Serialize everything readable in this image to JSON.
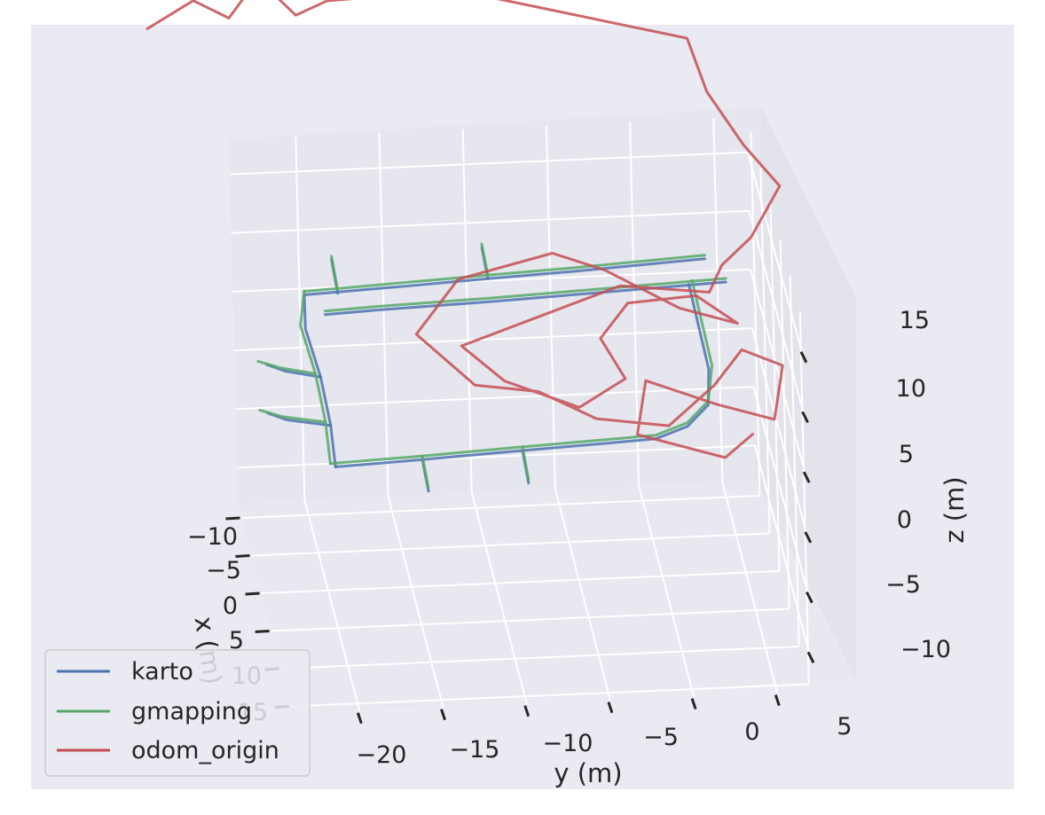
{
  "chart_data": {
    "type": "line",
    "projection": "3d",
    "title": "",
    "xlabel": "x (m)",
    "ylabel": "y (m)",
    "zlabel": "z (m)",
    "x_ticks": [
      "−10",
      "−5",
      "0",
      "5",
      "10",
      "15"
    ],
    "y_ticks": [
      "−20",
      "−15",
      "−10",
      "−5",
      "0",
      "5"
    ],
    "z_ticks": [
      "−10",
      "−5",
      "0",
      "5",
      "10",
      "15"
    ],
    "xlim": [
      -12,
      16
    ],
    "ylim": [
      -24,
      7
    ],
    "zlim": [
      -13,
      18
    ],
    "grid": true,
    "legend_position": "lower-left",
    "series": [
      {
        "name": "karto",
        "color": "#4c72b0",
        "segments": [
          [
            [
              0,
              -21,
              12
            ],
            [
              0,
              -16,
              12.3
            ],
            [
              0,
              -10,
              12.7
            ],
            [
              0,
              -5,
              13
            ],
            [
              0,
              -1,
              13.3
            ],
            [
              0,
              3,
              13.6
            ]
          ],
          [
            [
              0,
              -21,
              12
            ],
            [
              3,
              -21.3,
              11
            ],
            [
              8,
              -21,
              10
            ],
            [
              13,
              -21,
              9
            ],
            [
              17,
              -21.2,
              8
            ]
          ],
          [
            [
              17,
              -21.2,
              8
            ],
            [
              17,
              -16,
              8.3
            ],
            [
              17,
              -10,
              8.7
            ],
            [
              17,
              -5,
              9
            ],
            [
              17,
              -2,
              9.2
            ],
            [
              16,
              0,
              9.5
            ],
            [
              14,
              1.5,
              10
            ],
            [
              10,
              2,
              10.5
            ],
            [
              5,
              2,
              11
            ],
            [
              0,
              2,
              11.5
            ]
          ],
          [
            [
              8,
              -21,
              10
            ],
            [
              7,
              -23,
              10
            ],
            [
              6,
              -24,
              10
            ]
          ],
          [
            [
              13,
              -21,
              9
            ],
            [
              12,
              -23.5,
              9
            ],
            [
              11,
              -24.5,
              9
            ]
          ],
          [
            [
              17,
              -16,
              8.3
            ],
            [
              20,
              -16,
              7.5
            ]
          ],
          [
            [
              17,
              -10,
              8.7
            ],
            [
              20,
              -10,
              7.8
            ]
          ],
          [
            [
              0,
              -19,
              12
            ],
            [
              -3,
              -19,
              13
            ]
          ],
          [
            [
              0,
              -10,
              12.7
            ],
            [
              -3,
              -10,
              13.5
            ]
          ],
          [
            [
              2,
              -20,
              11.5
            ],
            [
              2,
              -17,
              11.7
            ],
            [
              2,
              -10,
              12
            ],
            [
              2,
              -3,
              12.4
            ],
            [
              2,
              4,
              12.8
            ]
          ]
        ]
      },
      {
        "name": "gmapping",
        "color": "#55a868",
        "segments": [
          [
            [
              0,
              -21,
              12.3
            ],
            [
              0,
              -16,
              12.6
            ],
            [
              0,
              -10,
              13
            ],
            [
              0,
              -5,
              13.3
            ],
            [
              0,
              -1,
              13.6
            ],
            [
              0,
              3,
              13.9
            ]
          ],
          [
            [
              0,
              -21,
              12.3
            ],
            [
              3,
              -21.6,
              11.3
            ],
            [
              8,
              -21.3,
              10.3
            ],
            [
              13,
              -21.3,
              9.3
            ],
            [
              17,
              -21.5,
              8.3
            ]
          ],
          [
            [
              17,
              -21.5,
              8.3
            ],
            [
              17,
              -16,
              8.6
            ],
            [
              17,
              -10,
              9
            ],
            [
              17,
              -5,
              9.3
            ],
            [
              17,
              -2,
              9.5
            ],
            [
              16,
              0,
              9.8
            ],
            [
              14,
              1.5,
              10.3
            ],
            [
              10,
              2.2,
              10.8
            ],
            [
              5,
              2.2,
              11.3
            ],
            [
              0,
              2.2,
              11.8
            ]
          ],
          [
            [
              8,
              -21.3,
              10.3
            ],
            [
              7,
              -23.3,
              10.3
            ],
            [
              6,
              -24.5,
              10.3
            ]
          ],
          [
            [
              13,
              -21.3,
              9.3
            ],
            [
              12,
              -23.8,
              9.3
            ],
            [
              11,
              -25,
              9.3
            ]
          ],
          [
            [
              17,
              -16,
              8.6
            ],
            [
              20,
              -16,
              7.8
            ]
          ],
          [
            [
              17,
              -10,
              9
            ],
            [
              20,
              -10,
              8.1
            ]
          ],
          [
            [
              0,
              -19,
              12.3
            ],
            [
              -3,
              -19,
              13.3
            ]
          ],
          [
            [
              0,
              -10,
              13
            ],
            [
              -3,
              -10,
              13.8
            ]
          ],
          [
            [
              2,
              -20,
              11.8
            ],
            [
              2,
              -17,
              12
            ],
            [
              2,
              -10,
              12.3
            ],
            [
              2,
              -3,
              12.7
            ],
            [
              2,
              4,
              13.1
            ]
          ]
        ]
      },
      {
        "name": "odom_origin",
        "color": "#c44e52",
        "segments": [
          [
            [
              0,
              -30,
              35
            ],
            [
              -2,
              -27,
              36
            ],
            [
              -1,
              -25,
              35
            ],
            [
              -3,
              -23,
              37
            ],
            [
              -1,
              -21,
              35
            ],
            [
              -2,
              -19,
              35.5
            ],
            [
              -3,
              -17,
              35
            ],
            [
              -2,
              -15,
              36
            ],
            [
              -3,
              -12,
              35
            ],
            [
              -4,
              -9,
              34
            ],
            [
              -5,
              -5,
              32
            ],
            [
              -6,
              -1,
              30
            ],
            [
              -7,
              3,
              28
            ],
            [
              -6,
              4,
              24
            ],
            [
              -5,
              6,
              20
            ],
            [
              -4,
              8,
              17
            ],
            [
              -2,
              6,
              14
            ],
            [
              0,
              4,
              13
            ],
            [
              2,
              3,
              12
            ],
            [
              -1,
              -2,
              11
            ],
            [
              3,
              -12,
              9
            ],
            [
              8,
              -10,
              9
            ],
            [
              12,
              -6,
              9
            ],
            [
              10,
              -3,
              10
            ],
            [
              6,
              -4,
              11
            ],
            [
              3,
              -2,
              12
            ],
            [
              4,
              2,
              13
            ],
            [
              8,
              4,
              13
            ],
            [
              4,
              1,
              12
            ],
            [
              0,
              -3,
              13
            ],
            [
              -1,
              -6,
              14
            ],
            [
              2,
              -12,
              14
            ],
            [
              6,
              -15,
              12
            ],
            [
              10,
              -12,
              10
            ],
            [
              8,
              -8,
              8
            ],
            [
              12,
              -5,
              8
            ],
            [
              15,
              -1,
              9
            ],
            [
              13,
              2,
              11
            ],
            [
              10,
              4,
              12
            ],
            [
              14,
              6,
              13
            ],
            [
              18,
              5,
              11
            ],
            [
              14,
              2,
              10
            ],
            [
              12,
              -2,
              11
            ],
            [
              16,
              -3,
              9
            ],
            [
              18,
              2,
              8
            ],
            [
              15,
              4,
              8
            ]
          ]
        ]
      }
    ]
  },
  "legend": [
    {
      "label": "karto",
      "color": "#4c72b0"
    },
    {
      "label": "gmapping",
      "color": "#55a868"
    },
    {
      "label": "odom_origin",
      "color": "#c44e52"
    }
  ],
  "colors": {
    "background": "#eaeaf2",
    "grid": "#ffffff",
    "pane": "#e3e3ec",
    "text": "#262626"
  }
}
